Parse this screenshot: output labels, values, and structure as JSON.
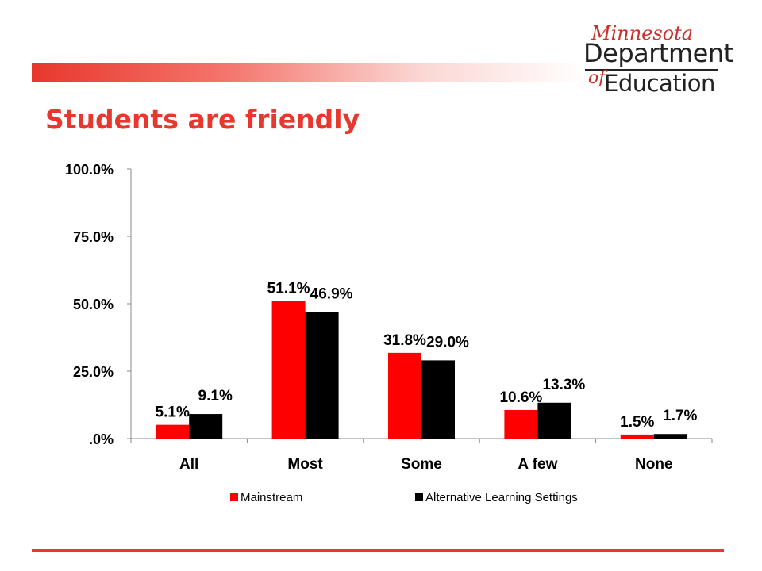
{
  "header": {
    "title": "Students are friendly",
    "accent_color": "#e8372c"
  },
  "logo": {
    "script_text": "Minnesota",
    "line1": "Department",
    "of_text": "of",
    "line2": "Education"
  },
  "chart_data": {
    "type": "bar",
    "categories": [
      "All",
      "Most",
      "Some",
      "A few",
      "None"
    ],
    "series": [
      {
        "name": "Mainstream",
        "color": "#ff0000",
        "values": [
          5.1,
          51.1,
          31.8,
          10.6,
          1.5
        ],
        "labels": [
          "5.1%",
          "51.1%",
          "31.8%",
          "10.6%",
          "1.5%"
        ]
      },
      {
        "name": "Alternative Learning Settings",
        "color": "#000000",
        "values": [
          9.1,
          46.9,
          29.0,
          13.3,
          1.7
        ],
        "labels": [
          "9.1%",
          "46.9%",
          "29.0%",
          "13.3%",
          "1.7%"
        ]
      }
    ],
    "yticks": [
      0,
      25,
      50,
      75,
      100
    ],
    "ytick_labels": [
      ".0%",
      "25.0%",
      "50.0%",
      "75.0%",
      "100.0%"
    ],
    "ylim": [
      0,
      100
    ],
    "grid": false,
    "legend_position": "bottom"
  }
}
